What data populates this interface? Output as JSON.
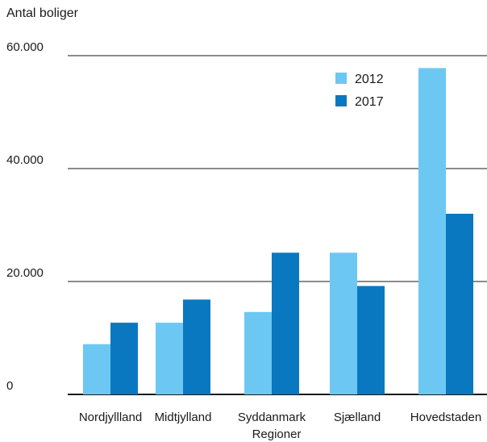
{
  "chart_data": {
    "type": "bar",
    "ylabel": "Antal boliger",
    "xlabel": "Regioner",
    "categories": [
      "Nordjyllland",
      "Midtjylland",
      "Syddanmark",
      "Sjælland",
      "Hovedstaden"
    ],
    "series": [
      {
        "name": "2012",
        "color": "#6cc8f2",
        "values": [
          8900,
          12700,
          14600,
          25100,
          57800
        ]
      },
      {
        "name": "2017",
        "color": "#0a78c0",
        "values": [
          12700,
          16800,
          25100,
          19200,
          32000
        ]
      }
    ],
    "ylim": [
      0,
      60000
    ],
    "yticks": [
      {
        "value": 0,
        "label": "0"
      },
      {
        "value": 20000,
        "label": "20.000"
      },
      {
        "value": 40000,
        "label": "40.000"
      },
      {
        "value": 60000,
        "label": "60.000"
      }
    ],
    "grid": true,
    "legend_position": "top-right"
  }
}
